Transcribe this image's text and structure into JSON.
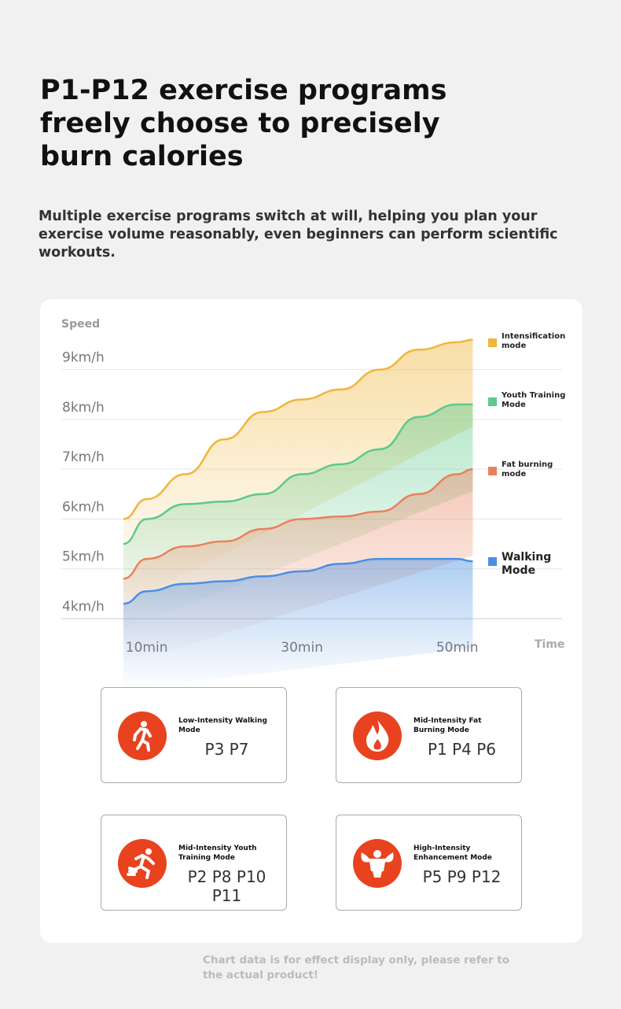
{
  "header": {
    "title": "P1-P12 exercise programs freely choose to precisely burn calories",
    "subtitle": "Multiple exercise programs switch at will, helping you plan your exercise volume reasonably, even beginners can perform scientific workouts."
  },
  "chart_data": {
    "type": "line",
    "y_label": "Speed",
    "x_label": "Time",
    "x": [
      7,
      10,
      15,
      20,
      25,
      30,
      35,
      40,
      45,
      50,
      52
    ],
    "xlim": [
      -1,
      63.5
    ],
    "xticks": [
      {
        "value": 10,
        "label": "10min"
      },
      {
        "value": 30,
        "label": "30min"
      },
      {
        "value": 50,
        "label": "50min"
      }
    ],
    "ylim": [
      4,
      9.8
    ],
    "yticks": [
      {
        "value": 4,
        "label": "4km/h"
      },
      {
        "value": 5,
        "label": "5km/h"
      },
      {
        "value": 6,
        "label": "6km/h"
      },
      {
        "value": 7,
        "label": "7km/h"
      },
      {
        "value": 8,
        "label": "8km/h"
      },
      {
        "value": 9,
        "label": "9km/h"
      }
    ],
    "grid": true,
    "series": [
      {
        "name": "Intensification mode",
        "color": "#f0b63a",
        "values": [
          6.0,
          6.4,
          6.9,
          7.6,
          8.15,
          8.4,
          8.6,
          9.0,
          9.4,
          9.55,
          9.6
        ]
      },
      {
        "name": "Youth Training Mode",
        "color": "#5cc98a",
        "values": [
          5.5,
          6.0,
          6.3,
          6.35,
          6.5,
          6.9,
          7.1,
          7.4,
          8.05,
          8.3,
          8.3
        ]
      },
      {
        "name": "Fat burning mode",
        "color": "#e8825e",
        "values": [
          4.8,
          5.2,
          5.45,
          5.55,
          5.8,
          6.0,
          6.05,
          6.15,
          6.5,
          6.9,
          7.0
        ]
      },
      {
        "name": "Walking Mode",
        "color": "#4a90e2",
        "values": [
          4.3,
          4.55,
          4.7,
          4.75,
          4.85,
          4.95,
          5.1,
          5.2,
          5.2,
          5.2,
          5.15
        ]
      }
    ]
  },
  "modes": [
    {
      "title": "Low-Intensity Walking Mode",
      "programs": "P3 P7"
    },
    {
      "title": "Mid-Intensity Fat Burning Mode",
      "programs": "P1 P4 P6"
    },
    {
      "title": "Mid-Intensity Youth Training Mode",
      "programs": "P2 P8 P10 P11"
    },
    {
      "title": "High-Intensity Enhancement Mode",
      "programs": "P5 P9 P12"
    }
  ],
  "footnote": "Chart data is for effect display only, please refer to the actual product!"
}
